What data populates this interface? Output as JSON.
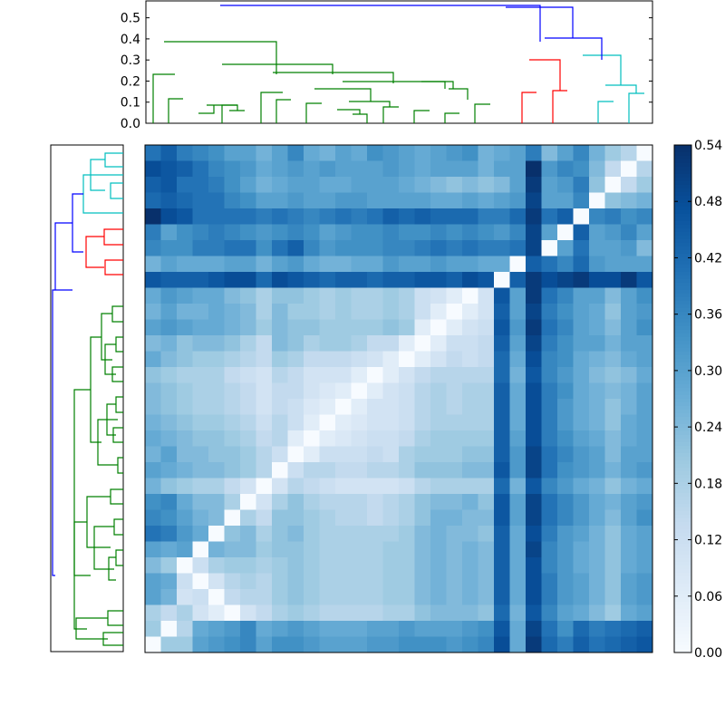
{
  "chart_data": {
    "type": "heatmap",
    "title": "",
    "n": 32,
    "colormap": "Blues",
    "colorbar": {
      "range": [
        0.0,
        0.54
      ],
      "ticks": [
        "0.00",
        "0.06",
        "0.12",
        "0.18",
        "0.24",
        "0.30",
        "0.36",
        "0.42",
        "0.48",
        "0.54"
      ]
    },
    "top_dendrogram": {
      "yaxis_ticks": [
        "0.0",
        "0.1",
        "0.2",
        "0.3",
        "0.4",
        "0.5"
      ],
      "ylim": [
        0.0,
        0.58
      ],
      "colors": {
        "green": "#008000",
        "red": "#ff0000",
        "cyan": "#00bfbf",
        "blue": "#0000ff"
      }
    },
    "left_dendrogram": {
      "note_hidden": false
    },
    "row_values": [
      [
        0.4,
        0.44,
        0.38,
        0.36,
        0.34,
        0.3,
        0.3,
        0.26,
        0.3,
        0.36,
        0.28,
        0.26,
        0.3,
        0.28,
        0.34,
        0.32,
        0.3,
        0.28,
        0.3,
        0.32,
        0.34,
        0.26,
        0.28,
        0.3,
        0.38,
        0.24,
        0.3,
        0.36,
        0.26,
        0.2,
        0.16,
        0.0
      ],
      [
        0.48,
        0.46,
        0.44,
        0.4,
        0.36,
        0.34,
        0.32,
        0.28,
        0.3,
        0.32,
        0.3,
        0.32,
        0.3,
        0.3,
        0.3,
        0.32,
        0.3,
        0.28,
        0.3,
        0.3,
        0.3,
        0.26,
        0.3,
        0.3,
        0.54,
        0.32,
        0.36,
        0.34,
        0.24,
        0.14,
        0.0,
        0.16
      ],
      [
        0.44,
        0.46,
        0.4,
        0.4,
        0.38,
        0.34,
        0.3,
        0.26,
        0.28,
        0.3,
        0.3,
        0.28,
        0.28,
        0.3,
        0.3,
        0.3,
        0.28,
        0.26,
        0.24,
        0.22,
        0.24,
        0.22,
        0.24,
        0.3,
        0.52,
        0.3,
        0.32,
        0.38,
        0.22,
        0.0,
        0.14,
        0.2
      ],
      [
        0.42,
        0.44,
        0.42,
        0.4,
        0.4,
        0.36,
        0.34,
        0.3,
        0.3,
        0.32,
        0.3,
        0.3,
        0.32,
        0.32,
        0.3,
        0.3,
        0.3,
        0.3,
        0.28,
        0.28,
        0.3,
        0.28,
        0.3,
        0.32,
        0.5,
        0.3,
        0.3,
        0.36,
        0.0,
        0.22,
        0.24,
        0.26
      ],
      [
        0.54,
        0.48,
        0.46,
        0.4,
        0.4,
        0.4,
        0.4,
        0.38,
        0.4,
        0.38,
        0.36,
        0.38,
        0.4,
        0.38,
        0.4,
        0.44,
        0.42,
        0.44,
        0.42,
        0.42,
        0.42,
        0.38,
        0.38,
        0.42,
        0.52,
        0.4,
        0.44,
        0.0,
        0.36,
        0.38,
        0.34,
        0.36
      ],
      [
        0.38,
        0.3,
        0.34,
        0.36,
        0.38,
        0.36,
        0.34,
        0.32,
        0.34,
        0.36,
        0.34,
        0.3,
        0.32,
        0.34,
        0.34,
        0.36,
        0.34,
        0.34,
        0.36,
        0.34,
        0.36,
        0.34,
        0.32,
        0.36,
        0.5,
        0.3,
        0.0,
        0.44,
        0.3,
        0.32,
        0.36,
        0.3
      ],
      [
        0.36,
        0.34,
        0.34,
        0.38,
        0.38,
        0.4,
        0.4,
        0.34,
        0.4,
        0.44,
        0.36,
        0.32,
        0.34,
        0.34,
        0.34,
        0.36,
        0.36,
        0.38,
        0.4,
        0.38,
        0.4,
        0.38,
        0.38,
        0.4,
        0.5,
        0.0,
        0.3,
        0.4,
        0.3,
        0.3,
        0.32,
        0.24
      ],
      [
        0.26,
        0.3,
        0.28,
        0.28,
        0.28,
        0.3,
        0.3,
        0.26,
        0.3,
        0.32,
        0.28,
        0.26,
        0.26,
        0.28,
        0.28,
        0.32,
        0.3,
        0.3,
        0.32,
        0.3,
        0.3,
        0.28,
        0.28,
        0.0,
        0.44,
        0.4,
        0.36,
        0.42,
        0.32,
        0.3,
        0.3,
        0.3
      ],
      [
        0.46,
        0.44,
        0.44,
        0.44,
        0.46,
        0.48,
        0.48,
        0.42,
        0.48,
        0.46,
        0.44,
        0.42,
        0.44,
        0.44,
        0.42,
        0.44,
        0.44,
        0.46,
        0.46,
        0.44,
        0.48,
        0.46,
        0.0,
        0.44,
        0.52,
        0.48,
        0.5,
        0.52,
        0.48,
        0.48,
        0.52,
        0.46
      ],
      [
        0.28,
        0.32,
        0.3,
        0.28,
        0.28,
        0.24,
        0.22,
        0.18,
        0.22,
        0.22,
        0.2,
        0.18,
        0.2,
        0.18,
        0.18,
        0.2,
        0.18,
        0.12,
        0.1,
        0.06,
        0.0,
        0.1,
        0.46,
        0.3,
        0.52,
        0.4,
        0.36,
        0.3,
        0.3,
        0.24,
        0.3,
        0.34
      ],
      [
        0.26,
        0.3,
        0.26,
        0.26,
        0.28,
        0.26,
        0.24,
        0.18,
        0.24,
        0.2,
        0.2,
        0.18,
        0.2,
        0.18,
        0.18,
        0.2,
        0.18,
        0.12,
        0.06,
        0.0,
        0.06,
        0.1,
        0.44,
        0.3,
        0.5,
        0.38,
        0.34,
        0.3,
        0.28,
        0.22,
        0.3,
        0.32
      ],
      [
        0.3,
        0.32,
        0.3,
        0.28,
        0.28,
        0.26,
        0.24,
        0.2,
        0.24,
        0.22,
        0.22,
        0.2,
        0.2,
        0.2,
        0.2,
        0.22,
        0.2,
        0.06,
        0.0,
        0.06,
        0.1,
        0.12,
        0.46,
        0.32,
        0.52,
        0.4,
        0.36,
        0.3,
        0.28,
        0.24,
        0.3,
        0.34
      ],
      [
        0.24,
        0.26,
        0.22,
        0.24,
        0.24,
        0.22,
        0.18,
        0.14,
        0.24,
        0.22,
        0.18,
        0.2,
        0.2,
        0.18,
        0.14,
        0.14,
        0.06,
        0.0,
        0.06,
        0.12,
        0.12,
        0.14,
        0.44,
        0.3,
        0.5,
        0.38,
        0.34,
        0.3,
        0.3,
        0.26,
        0.3,
        0.3
      ],
      [
        0.28,
        0.24,
        0.22,
        0.2,
        0.2,
        0.18,
        0.16,
        0.14,
        0.2,
        0.18,
        0.14,
        0.14,
        0.14,
        0.12,
        0.1,
        0.06,
        0.0,
        0.06,
        0.1,
        0.14,
        0.12,
        0.14,
        0.42,
        0.28,
        0.48,
        0.36,
        0.34,
        0.28,
        0.26,
        0.24,
        0.28,
        0.3
      ],
      [
        0.22,
        0.2,
        0.18,
        0.18,
        0.18,
        0.14,
        0.12,
        0.1,
        0.16,
        0.14,
        0.1,
        0.1,
        0.1,
        0.06,
        0.0,
        0.06,
        0.1,
        0.14,
        0.16,
        0.16,
        0.16,
        0.16,
        0.42,
        0.26,
        0.46,
        0.36,
        0.32,
        0.28,
        0.24,
        0.22,
        0.24,
        0.28
      ],
      [
        0.24,
        0.22,
        0.2,
        0.18,
        0.18,
        0.16,
        0.14,
        0.1,
        0.14,
        0.14,
        0.1,
        0.08,
        0.06,
        0.0,
        0.06,
        0.1,
        0.12,
        0.16,
        0.18,
        0.16,
        0.18,
        0.18,
        0.44,
        0.28,
        0.48,
        0.38,
        0.34,
        0.28,
        0.26,
        0.24,
        0.26,
        0.3
      ],
      [
        0.24,
        0.22,
        0.2,
        0.18,
        0.18,
        0.16,
        0.14,
        0.1,
        0.14,
        0.12,
        0.08,
        0.06,
        0.0,
        0.06,
        0.1,
        0.1,
        0.12,
        0.16,
        0.18,
        0.16,
        0.18,
        0.18,
        0.44,
        0.28,
        0.48,
        0.38,
        0.32,
        0.28,
        0.26,
        0.22,
        0.26,
        0.3
      ],
      [
        0.26,
        0.24,
        0.22,
        0.2,
        0.2,
        0.18,
        0.16,
        0.12,
        0.16,
        0.12,
        0.06,
        0.0,
        0.06,
        0.08,
        0.1,
        0.1,
        0.12,
        0.16,
        0.18,
        0.18,
        0.18,
        0.18,
        0.44,
        0.28,
        0.48,
        0.38,
        0.32,
        0.28,
        0.26,
        0.22,
        0.28,
        0.3
      ],
      [
        0.28,
        0.26,
        0.24,
        0.22,
        0.22,
        0.2,
        0.18,
        0.14,
        0.16,
        0.06,
        0.0,
        0.06,
        0.08,
        0.1,
        0.12,
        0.12,
        0.14,
        0.18,
        0.2,
        0.2,
        0.2,
        0.2,
        0.44,
        0.3,
        0.48,
        0.38,
        0.34,
        0.3,
        0.28,
        0.24,
        0.28,
        0.3
      ],
      [
        0.26,
        0.3,
        0.24,
        0.24,
        0.22,
        0.22,
        0.2,
        0.16,
        0.12,
        0.0,
        0.06,
        0.12,
        0.12,
        0.12,
        0.14,
        0.12,
        0.18,
        0.2,
        0.2,
        0.2,
        0.22,
        0.22,
        0.44,
        0.32,
        0.5,
        0.4,
        0.36,
        0.32,
        0.3,
        0.24,
        0.3,
        0.3
      ],
      [
        0.3,
        0.28,
        0.26,
        0.24,
        0.24,
        0.22,
        0.2,
        0.16,
        0.0,
        0.12,
        0.16,
        0.16,
        0.14,
        0.14,
        0.16,
        0.16,
        0.18,
        0.22,
        0.22,
        0.22,
        0.24,
        0.24,
        0.46,
        0.32,
        0.5,
        0.4,
        0.34,
        0.32,
        0.3,
        0.26,
        0.3,
        0.32
      ],
      [
        0.26,
        0.22,
        0.2,
        0.18,
        0.18,
        0.14,
        0.1,
        0.0,
        0.1,
        0.16,
        0.14,
        0.12,
        0.1,
        0.1,
        0.1,
        0.1,
        0.12,
        0.16,
        0.18,
        0.18,
        0.18,
        0.18,
        0.42,
        0.26,
        0.46,
        0.36,
        0.32,
        0.28,
        0.26,
        0.22,
        0.26,
        0.28
      ],
      [
        0.34,
        0.36,
        0.28,
        0.24,
        0.24,
        0.18,
        0.0,
        0.1,
        0.18,
        0.22,
        0.18,
        0.16,
        0.16,
        0.16,
        0.14,
        0.16,
        0.18,
        0.22,
        0.24,
        0.24,
        0.26,
        0.22,
        0.46,
        0.3,
        0.5,
        0.4,
        0.36,
        0.32,
        0.28,
        0.26,
        0.3,
        0.32
      ],
      [
        0.36,
        0.34,
        0.3,
        0.26,
        0.24,
        0.0,
        0.18,
        0.14,
        0.22,
        0.22,
        0.2,
        0.18,
        0.16,
        0.16,
        0.14,
        0.16,
        0.18,
        0.22,
        0.26,
        0.26,
        0.24,
        0.24,
        0.46,
        0.3,
        0.5,
        0.4,
        0.36,
        0.32,
        0.28,
        0.24,
        0.3,
        0.34
      ],
      [
        0.4,
        0.38,
        0.32,
        0.28,
        0.0,
        0.22,
        0.24,
        0.18,
        0.22,
        0.24,
        0.2,
        0.18,
        0.18,
        0.18,
        0.18,
        0.18,
        0.2,
        0.24,
        0.26,
        0.24,
        0.24,
        0.22,
        0.44,
        0.28,
        0.48,
        0.38,
        0.32,
        0.3,
        0.26,
        0.22,
        0.28,
        0.3
      ],
      [
        0.3,
        0.28,
        0.3,
        0.0,
        0.26,
        0.24,
        0.24,
        0.2,
        0.22,
        0.22,
        0.2,
        0.18,
        0.18,
        0.18,
        0.18,
        0.2,
        0.2,
        0.24,
        0.26,
        0.24,
        0.26,
        0.24,
        0.44,
        0.28,
        0.5,
        0.36,
        0.32,
        0.28,
        0.26,
        0.22,
        0.28,
        0.3
      ],
      [
        0.24,
        0.2,
        0.0,
        0.12,
        0.18,
        0.2,
        0.2,
        0.18,
        0.2,
        0.22,
        0.2,
        0.18,
        0.18,
        0.18,
        0.18,
        0.2,
        0.2,
        0.24,
        0.26,
        0.24,
        0.26,
        0.24,
        0.44,
        0.28,
        0.48,
        0.36,
        0.32,
        0.28,
        0.26,
        0.22,
        0.28,
        0.3
      ],
      [
        0.3,
        0.28,
        0.12,
        0.0,
        0.1,
        0.16,
        0.18,
        0.16,
        0.2,
        0.22,
        0.2,
        0.18,
        0.18,
        0.18,
        0.18,
        0.2,
        0.2,
        0.24,
        0.26,
        0.24,
        0.26,
        0.24,
        0.44,
        0.28,
        0.48,
        0.38,
        0.32,
        0.3,
        0.26,
        0.22,
        0.3,
        0.32
      ],
      [
        0.3,
        0.26,
        0.1,
        0.12,
        0.0,
        0.14,
        0.16,
        0.16,
        0.2,
        0.22,
        0.2,
        0.18,
        0.18,
        0.18,
        0.18,
        0.2,
        0.2,
        0.24,
        0.26,
        0.24,
        0.26,
        0.24,
        0.44,
        0.28,
        0.48,
        0.38,
        0.32,
        0.3,
        0.26,
        0.22,
        0.3,
        0.32
      ],
      [
        0.18,
        0.14,
        0.18,
        0.1,
        0.06,
        0.0,
        0.1,
        0.14,
        0.18,
        0.2,
        0.18,
        0.16,
        0.16,
        0.16,
        0.16,
        0.18,
        0.18,
        0.22,
        0.24,
        0.24,
        0.24,
        0.22,
        0.42,
        0.26,
        0.46,
        0.36,
        0.3,
        0.28,
        0.24,
        0.2,
        0.28,
        0.3
      ],
      [
        0.2,
        0.0,
        0.16,
        0.28,
        0.3,
        0.32,
        0.36,
        0.28,
        0.3,
        0.32,
        0.3,
        0.28,
        0.28,
        0.28,
        0.3,
        0.3,
        0.32,
        0.3,
        0.3,
        0.3,
        0.32,
        0.34,
        0.46,
        0.28,
        0.5,
        0.4,
        0.34,
        0.42,
        0.38,
        0.4,
        0.42,
        0.44
      ],
      [
        0.0,
        0.2,
        0.2,
        0.3,
        0.32,
        0.34,
        0.36,
        0.3,
        0.34,
        0.34,
        0.32,
        0.3,
        0.3,
        0.3,
        0.32,
        0.32,
        0.34,
        0.34,
        0.34,
        0.32,
        0.34,
        0.36,
        0.48,
        0.28,
        0.52,
        0.42,
        0.38,
        0.44,
        0.4,
        0.42,
        0.44,
        0.46
      ]
    ]
  }
}
